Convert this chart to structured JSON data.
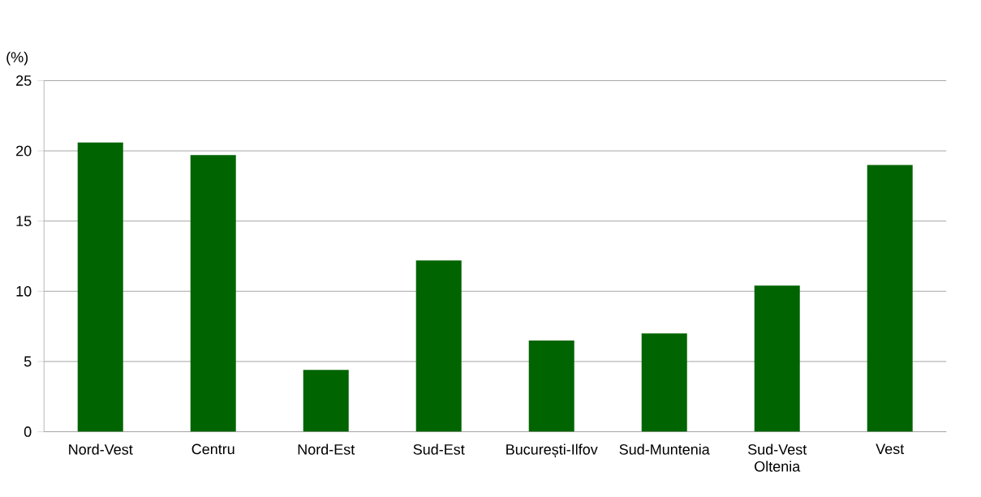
{
  "chart_data": {
    "type": "bar",
    "ylabel": "(%)",
    "categories": [
      "Nord-Vest",
      "Centru",
      "Nord-Est",
      "Sud-Est",
      "București-Ilfov",
      "Sud-Muntenia",
      "Sud-Vest Oltenia",
      "Vest"
    ],
    "values": [
      20.6,
      19.7,
      4.4,
      12.2,
      6.5,
      7.0,
      10.4,
      19.0
    ],
    "color": "#006400",
    "ylim": [
      0,
      25
    ],
    "yticks": [
      0,
      5,
      10,
      15,
      20,
      25
    ],
    "grid": "y"
  }
}
